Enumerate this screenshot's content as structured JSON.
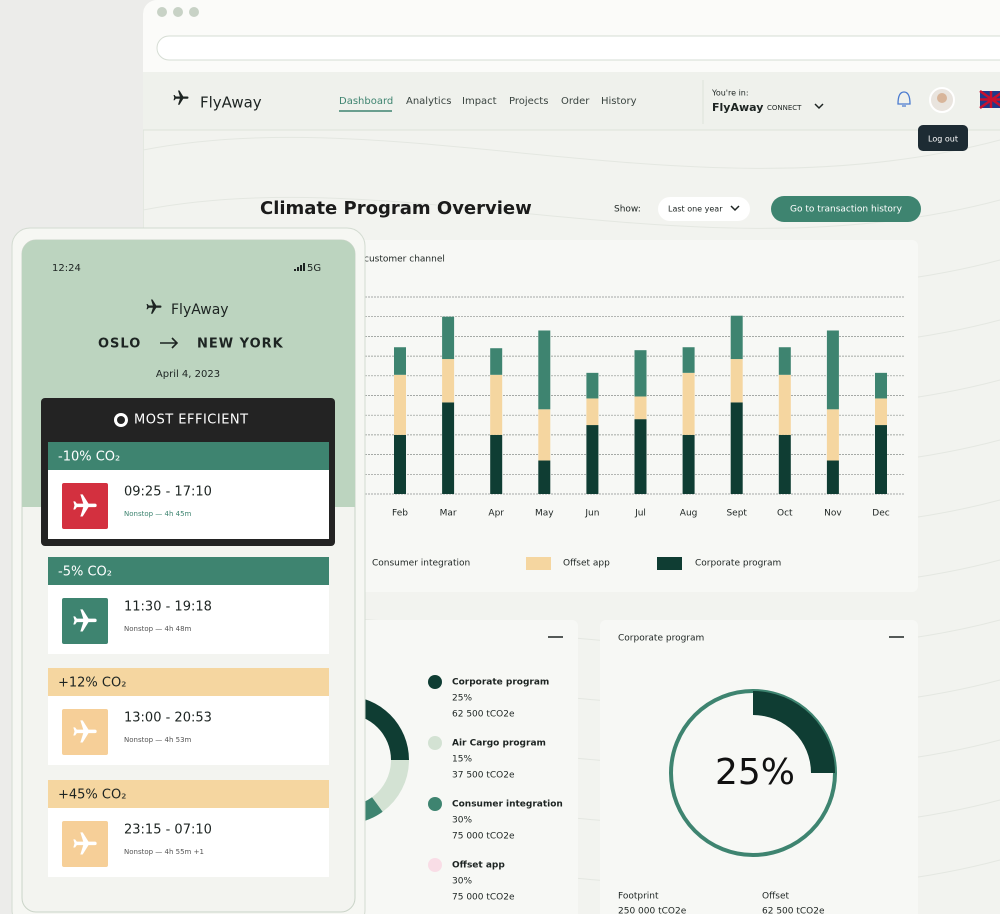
{
  "nav": {
    "logo": "FlyAway",
    "links": [
      "Dashboard",
      "Analytics",
      "Impact",
      "Projects",
      "Order",
      "History"
    ],
    "account_label": "You're in:",
    "account_name": "FlyAway",
    "account_plan": "CONNECT",
    "tooltip": "Log out"
  },
  "header": {
    "title": "Climate Program Overview",
    "show_label": "Show:",
    "period": "Last one year",
    "button": "Go to transaction history"
  },
  "chart_data": [
    {
      "type": "bar",
      "stacked": true,
      "title": "customer channel",
      "categories": [
        "Feb",
        "Mar",
        "Apr",
        "May",
        "Jun",
        "Jul",
        "Aug",
        "Sept",
        "Oct",
        "Nov",
        "Dec"
      ],
      "ylim": [
        0,
        10
      ],
      "series": [
        {
          "name": "Corporate program",
          "color": "#0f3d33",
          "values": [
            3.0,
            4.65,
            3.0,
            1.7,
            3.5,
            3.8,
            3.0,
            4.65,
            3.0,
            1.7,
            3.5
          ]
        },
        {
          "name": "Offset app",
          "color": "#f5d6a0",
          "values": [
            3.05,
            2.2,
            3.05,
            2.6,
            1.35,
            1.15,
            3.15,
            2.2,
            3.05,
            2.6,
            1.35
          ]
        },
        {
          "name": "Consumer integration",
          "color": "#3e8470",
          "values": [
            1.4,
            2.15,
            1.35,
            4.0,
            1.3,
            2.35,
            1.3,
            2.2,
            1.4,
            4.0,
            1.3
          ]
        }
      ]
    },
    {
      "type": "pie",
      "donut": true,
      "categories": [
        "Corporate program",
        "Air Cargo program",
        "Consumer integration",
        "Offset app"
      ],
      "values": [
        25,
        15,
        30,
        30
      ],
      "value_labels": [
        "25%",
        "15%",
        "30%",
        "30%"
      ],
      "amounts": [
        "62 500 tCO2e",
        "37 500 tCO2e",
        "75 000 tCO2e",
        "75 000 tCO2e"
      ],
      "colors": [
        "#0f3d33",
        "#d3e2d3",
        "#3e8470",
        "#f9dde6"
      ]
    },
    {
      "type": "progress",
      "title": "Corporate program",
      "values": [
        25
      ],
      "value_labels": [
        "25%"
      ],
      "color": "#0f3d33",
      "stats": [
        {
          "label": "Footprint",
          "value": "250 000 tCO2e"
        },
        {
          "label": "Offset",
          "value": "62 500 tCO2e"
        }
      ]
    }
  ],
  "phone": {
    "time": "12:24",
    "network": "5G",
    "logo": "FlyAway",
    "origin": "OSLO",
    "destination": "NEW YORK",
    "date": "April 4, 2023",
    "badge": "MOST EFFICIENT",
    "flights": [
      {
        "co2": "-10% CO₂",
        "times": "09:25 - 17:10",
        "details": "Nonstop — 4h 45m",
        "color": "#3e8470",
        "icon": "#d3303f"
      },
      {
        "co2": "-5% CO₂",
        "times": "11:30 - 19:18",
        "details": "Nonstop — 4h 48m",
        "color": "#3e8470",
        "icon": "#3e8470"
      },
      {
        "co2": "+12% CO₂",
        "times": "13:00 - 20:53",
        "details": "Nonstop — 4h 53m",
        "color": "#f5d6a0",
        "icon": "#f6cf98"
      },
      {
        "co2": "+45% CO₂",
        "times": "23:15 - 07:10",
        "details": "Nonstop — 4h 55m +1",
        "color": "#f5d6a0",
        "icon": "#f6cf98"
      }
    ]
  }
}
